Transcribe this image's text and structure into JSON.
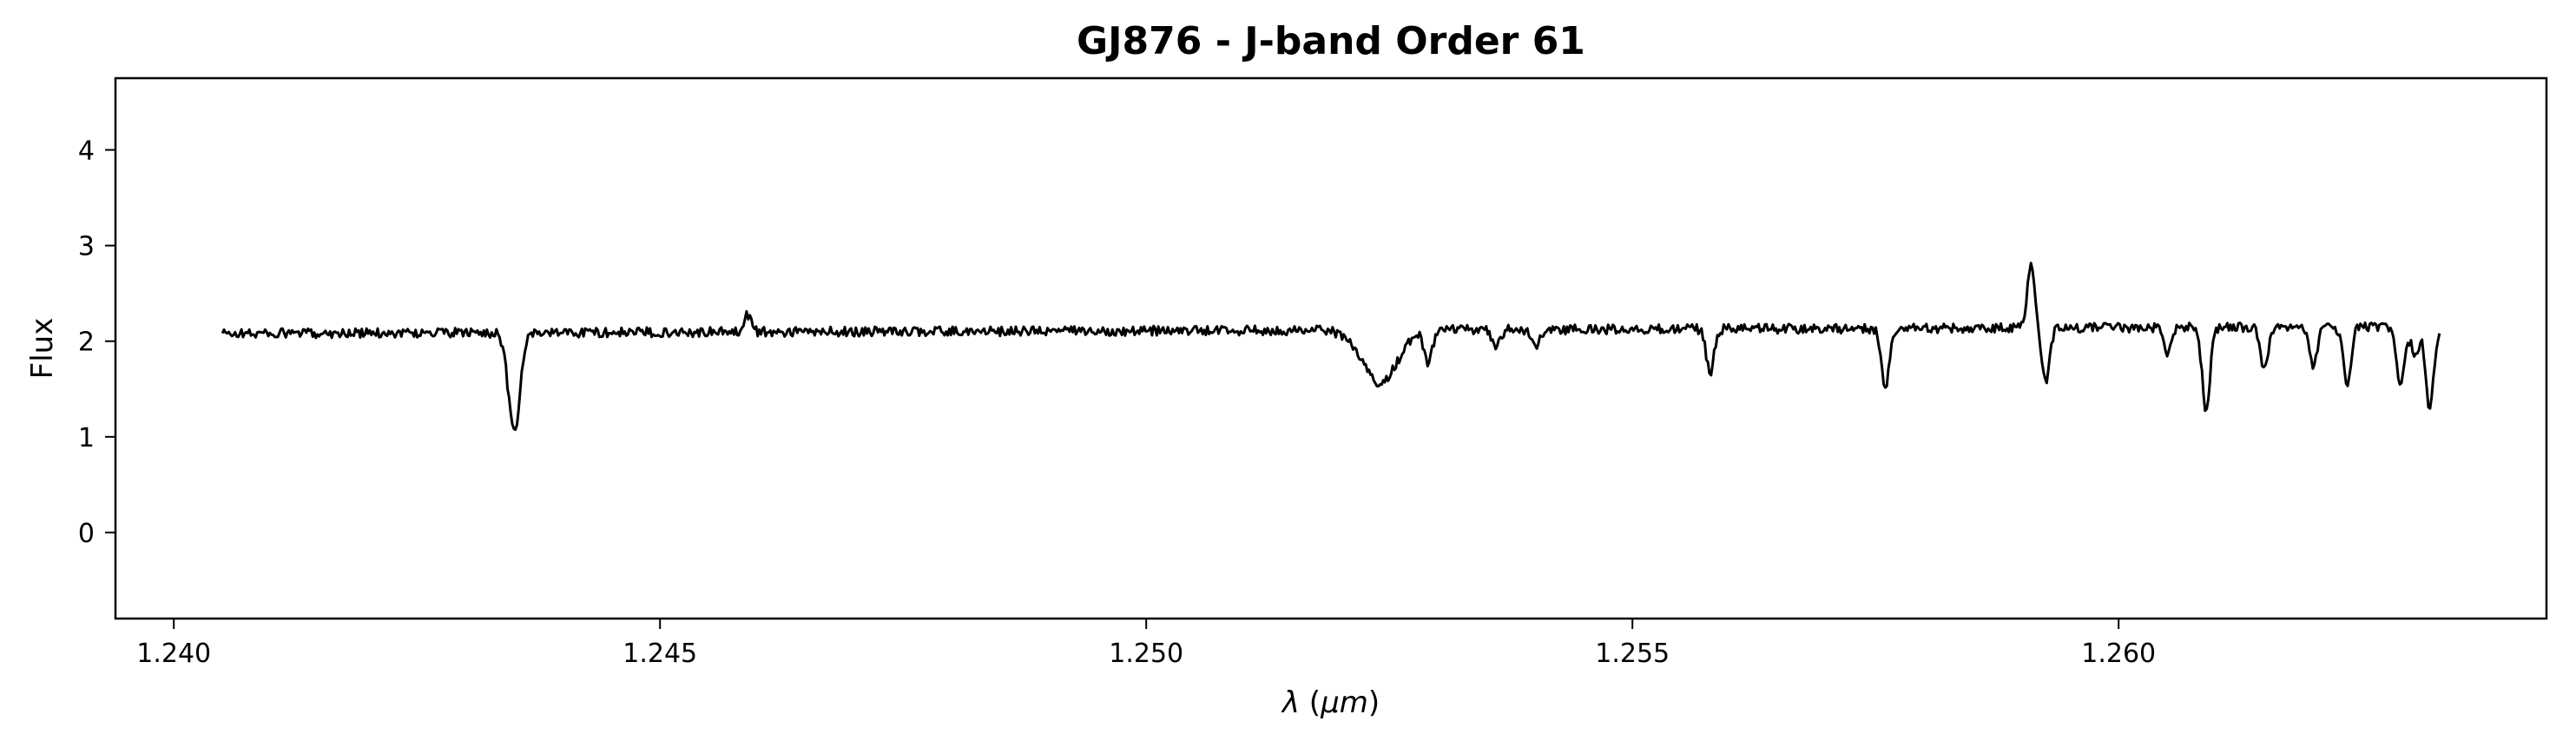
{
  "chart_data": {
    "type": "line",
    "title": "GJ876 - J-band Order 61",
    "xlabel": "λ (μm)",
    "ylabel": "Flux",
    "xlim": [
      1.2394,
      1.2644
    ],
    "ylim": [
      -0.9,
      4.75
    ],
    "xticks": [
      1.24,
      1.245,
      1.25,
      1.255,
      1.26
    ],
    "xtick_labels": [
      "1.240",
      "1.245",
      "1.250",
      "1.255",
      "1.260"
    ],
    "yticks": [
      0,
      1,
      2,
      3,
      4
    ],
    "ytick_labels": [
      "0",
      "1",
      "2",
      "3",
      "4"
    ],
    "grid": false,
    "line_color": "#000000",
    "series": [
      {
        "x_start": 1.2405,
        "x_end": 1.2633,
        "baseline_start": 2.08,
        "baseline_end": 2.15,
        "noise_amplitude": 0.05,
        "features": [
          {
            "center": 1.2435,
            "depth": 1.05,
            "width": 6e-05
          },
          {
            "center": 1.2459,
            "depth": -0.18,
            "width": 4e-05
          },
          {
            "center": 1.2524,
            "depth": 0.55,
            "width": 0.00018
          },
          {
            "center": 1.2529,
            "depth": 0.35,
            "width": 4e-05
          },
          {
            "center": 1.2536,
            "depth": 0.18,
            "width": 4e-05
          },
          {
            "center": 1.254,
            "depth": 0.2,
            "width": 4e-05
          },
          {
            "center": 1.2558,
            "depth": 0.45,
            "width": 4e-05
          },
          {
            "center": 1.2576,
            "depth": 0.62,
            "width": 4e-05
          },
          {
            "center": 1.2591,
            "depth": -0.65,
            "width": 4e-05
          },
          {
            "center": 1.25925,
            "depth": 0.55,
            "width": 4e-05
          },
          {
            "center": 1.2605,
            "depth": 0.25,
            "width": 4e-05
          },
          {
            "center": 1.2609,
            "depth": 0.88,
            "width": 4e-05
          },
          {
            "center": 1.2615,
            "depth": 0.45,
            "width": 4e-05
          },
          {
            "center": 1.262,
            "depth": 0.4,
            "width": 4e-05
          },
          {
            "center": 1.26235,
            "depth": 0.6,
            "width": 4e-05
          },
          {
            "center": 1.2629,
            "depth": 0.6,
            "width": 4e-05
          },
          {
            "center": 1.26305,
            "depth": 0.3,
            "width": 4e-05
          },
          {
            "center": 1.2632,
            "depth": 0.85,
            "width": 4e-05
          }
        ]
      }
    ]
  }
}
